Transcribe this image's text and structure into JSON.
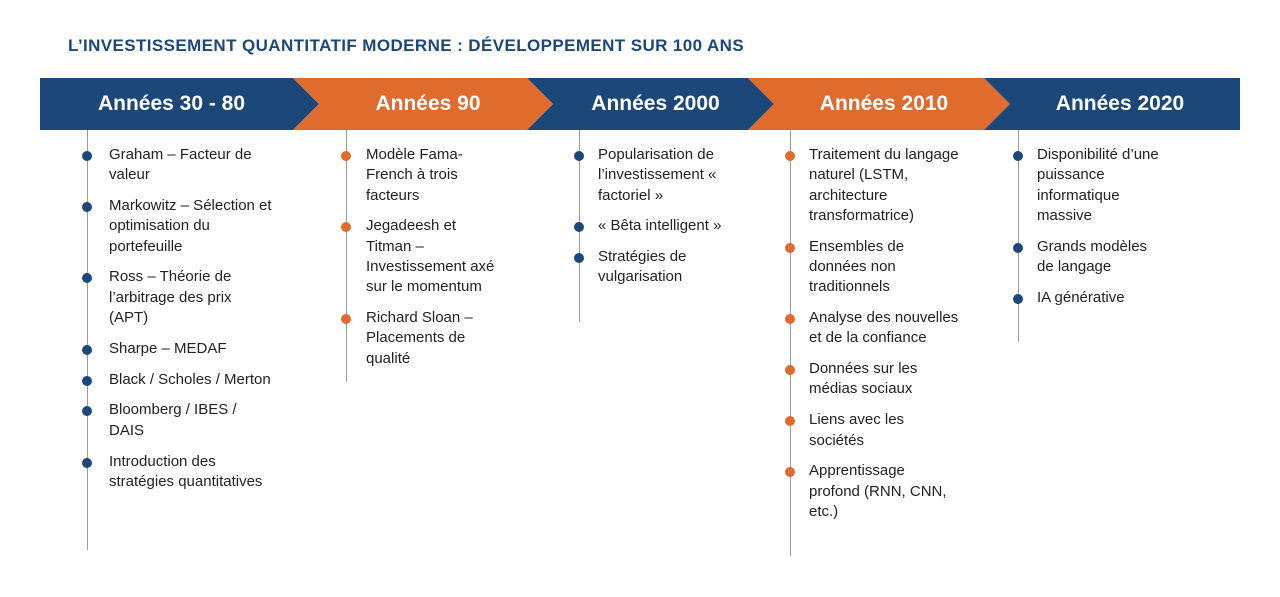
{
  "title": "L’INVESTISSEMENT QUANTITATIF MODERNE : DÉVELOPPEMENT SUR 100 ANS",
  "colors": {
    "blue": "#1b4779",
    "orange": "#df6b2c",
    "line": "#9a9a9a",
    "text": "#222222"
  },
  "periods": [
    {
      "label": "Années 30 - 80",
      "color": "blue",
      "items": [
        "Graham – Facteur de valeur",
        "Markowitz – Sélection et optimisation du portefeuille",
        "Ross – Théorie de l’arbitrage des prix (APT)",
        "Sharpe – MEDAF",
        "Black / Scholes / Merton",
        "Bloomberg / IBES / DAIS",
        "Introduction des stratégies quantitatives"
      ]
    },
    {
      "label": "Années 90",
      "color": "orange",
      "items": [
        "Modèle Fama-French à trois facteurs",
        "Jegadeesh et Titman – Investissement axé sur le momentum",
        "Richard Sloan – Placements de qualité"
      ]
    },
    {
      "label": "Années 2000",
      "color": "blue",
      "items": [
        "Popularisation de l’investissement « factoriel »",
        "« Bêta intelligent »",
        "Stratégies de vulgarisation"
      ]
    },
    {
      "label": "Années 2010",
      "color": "orange",
      "items": [
        "Traitement du langage naturel (LSTM, architecture transformatrice)",
        "Ensembles de données non traditionnels",
        "Analyse des nouvelles et de la confiance",
        "Données sur les médias sociaux",
        "Liens avec les sociétés",
        "Apprentissage profond (RNN, CNN, etc.)"
      ]
    },
    {
      "label": "Années 2020",
      "color": "blue",
      "items": [
        "Disponibilité d’une puissance informatique massive",
        "Grands modèles de langage",
        "IA générative"
      ]
    }
  ]
}
